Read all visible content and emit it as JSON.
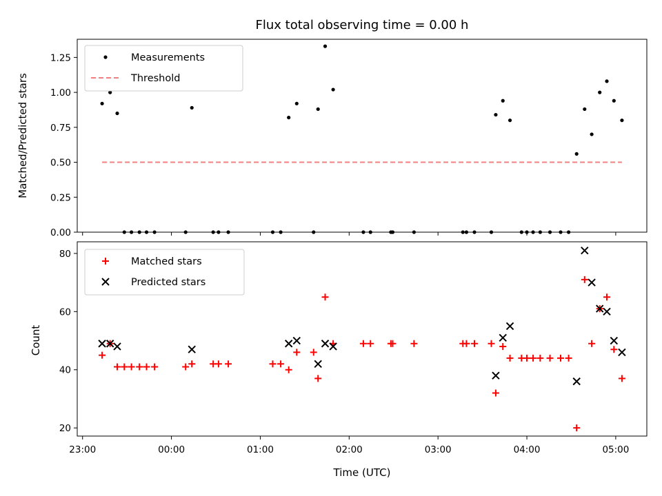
{
  "chart_data": {
    "title": "Flux total observing time = 0.00 h",
    "x_tick_labels": [
      "23:00",
      "00:00",
      "01:00",
      "02:00",
      "03:00",
      "04:00",
      "05:00"
    ],
    "x_ticks_hours": [
      0,
      1,
      2,
      3,
      4,
      5,
      6
    ],
    "xlim_hours": [
      -0.06,
      6.35
    ],
    "xlabel": "Time (UTC)",
    "plots": [
      {
        "type": "scatter",
        "ylabel": "Matched/Predicted stars",
        "ylim": [
          0,
          1.38
        ],
        "y_ticks": [
          0.0,
          0.25,
          0.5,
          0.75,
          1.0,
          1.25
        ],
        "y_tick_labels": [
          "0.00",
          "0.25",
          "0.50",
          "0.75",
          "1.00",
          "1.25"
        ],
        "legend_position": "top-left",
        "legend": [
          "Measurements",
          "Threshold"
        ],
        "threshold": {
          "value": 0.5,
          "x_range_hours": [
            0.22,
            6.07
          ],
          "color": "#f08080"
        },
        "series": [
          {
            "name": "Measurements",
            "color": "#000000",
            "marker": "dot",
            "points": [
              [
                0.22,
                0.92
              ],
              [
                0.31,
                1.0
              ],
              [
                0.39,
                0.85
              ],
              [
                0.47,
                0.0
              ],
              [
                0.55,
                0.0
              ],
              [
                0.64,
                0.0
              ],
              [
                0.72,
                0.0
              ],
              [
                0.81,
                0.0
              ],
              [
                1.16,
                0.0
              ],
              [
                1.23,
                0.89
              ],
              [
                1.47,
                0.0
              ],
              [
                1.53,
                0.0
              ],
              [
                1.64,
                0.0
              ],
              [
                2.14,
                0.0
              ],
              [
                2.23,
                0.0
              ],
              [
                2.32,
                0.82
              ],
              [
                2.41,
                0.92
              ],
              [
                2.6,
                0.0
              ],
              [
                2.65,
                0.88
              ],
              [
                2.73,
                1.33
              ],
              [
                2.82,
                1.02
              ],
              [
                3.16,
                0.0
              ],
              [
                3.24,
                0.0
              ],
              [
                3.47,
                0.0
              ],
              [
                3.49,
                0.0
              ],
              [
                3.73,
                0.0
              ],
              [
                4.28,
                0.0
              ],
              [
                4.32,
                0.0
              ],
              [
                4.41,
                0.0
              ],
              [
                4.6,
                0.0
              ],
              [
                4.65,
                0.84
              ],
              [
                4.73,
                0.94
              ],
              [
                4.81,
                0.8
              ],
              [
                4.94,
                0.0
              ],
              [
                5.0,
                0.0
              ],
              [
                5.07,
                0.0
              ],
              [
                5.15,
                0.0
              ],
              [
                5.26,
                0.0
              ],
              [
                5.38,
                0.0
              ],
              [
                5.47,
                0.0
              ],
              [
                5.56,
                0.56
              ],
              [
                5.65,
                0.88
              ],
              [
                5.73,
                0.7
              ],
              [
                5.82,
                1.0
              ],
              [
                5.9,
                1.08
              ],
              [
                5.98,
                0.94
              ],
              [
                6.07,
                0.8
              ]
            ]
          }
        ]
      },
      {
        "type": "scatter",
        "ylabel": "Count",
        "ylim": [
          17.2,
          84
        ],
        "y_ticks": [
          20,
          40,
          60,
          80
        ],
        "y_tick_labels": [
          "20",
          "40",
          "60",
          "80"
        ],
        "legend_position": "top-left",
        "legend": [
          "Matched stars",
          "Predicted stars"
        ],
        "series": [
          {
            "name": "Matched stars",
            "color": "#ff0000",
            "marker": "plus",
            "points": [
              [
                0.22,
                45
              ],
              [
                0.31,
                49
              ],
              [
                0.39,
                41
              ],
              [
                0.47,
                41
              ],
              [
                0.55,
                41
              ],
              [
                0.64,
                41
              ],
              [
                0.72,
                41
              ],
              [
                0.81,
                41
              ],
              [
                1.16,
                41
              ],
              [
                1.23,
                42
              ],
              [
                1.47,
                42
              ],
              [
                1.53,
                42
              ],
              [
                1.64,
                42
              ],
              [
                2.14,
                42
              ],
              [
                2.23,
                42
              ],
              [
                2.32,
                40
              ],
              [
                2.41,
                46
              ],
              [
                2.6,
                46
              ],
              [
                2.65,
                37
              ],
              [
                2.73,
                65
              ],
              [
                2.82,
                49
              ],
              [
                3.16,
                49
              ],
              [
                3.24,
                49
              ],
              [
                3.47,
                49
              ],
              [
                3.49,
                49
              ],
              [
                3.73,
                49
              ],
              [
                4.28,
                49
              ],
              [
                4.32,
                49
              ],
              [
                4.41,
                49
              ],
              [
                4.6,
                49
              ],
              [
                4.65,
                32
              ],
              [
                4.73,
                48
              ],
              [
                4.81,
                44
              ],
              [
                4.94,
                44
              ],
              [
                5.0,
                44
              ],
              [
                5.07,
                44
              ],
              [
                5.15,
                44
              ],
              [
                5.26,
                44
              ],
              [
                5.38,
                44
              ],
              [
                5.47,
                44
              ],
              [
                5.56,
                20
              ],
              [
                5.65,
                71
              ],
              [
                5.73,
                49
              ],
              [
                5.82,
                61
              ],
              [
                5.9,
                65
              ],
              [
                5.98,
                47
              ],
              [
                6.07,
                37
              ]
            ]
          },
          {
            "name": "Predicted stars",
            "color": "#000000",
            "marker": "x",
            "points": [
              [
                0.22,
                49
              ],
              [
                0.31,
                49
              ],
              [
                0.39,
                48
              ],
              [
                1.23,
                47
              ],
              [
                2.32,
                49
              ],
              [
                2.41,
                50
              ],
              [
                2.65,
                42
              ],
              [
                2.73,
                49
              ],
              [
                2.82,
                48
              ],
              [
                4.65,
                38
              ],
              [
                4.73,
                51
              ],
              [
                4.81,
                55
              ],
              [
                5.56,
                36
              ],
              [
                5.65,
                81
              ],
              [
                5.73,
                70
              ],
              [
                5.82,
                61
              ],
              [
                5.9,
                60
              ],
              [
                5.98,
                50
              ],
              [
                6.07,
                46
              ]
            ]
          }
        ]
      }
    ]
  }
}
